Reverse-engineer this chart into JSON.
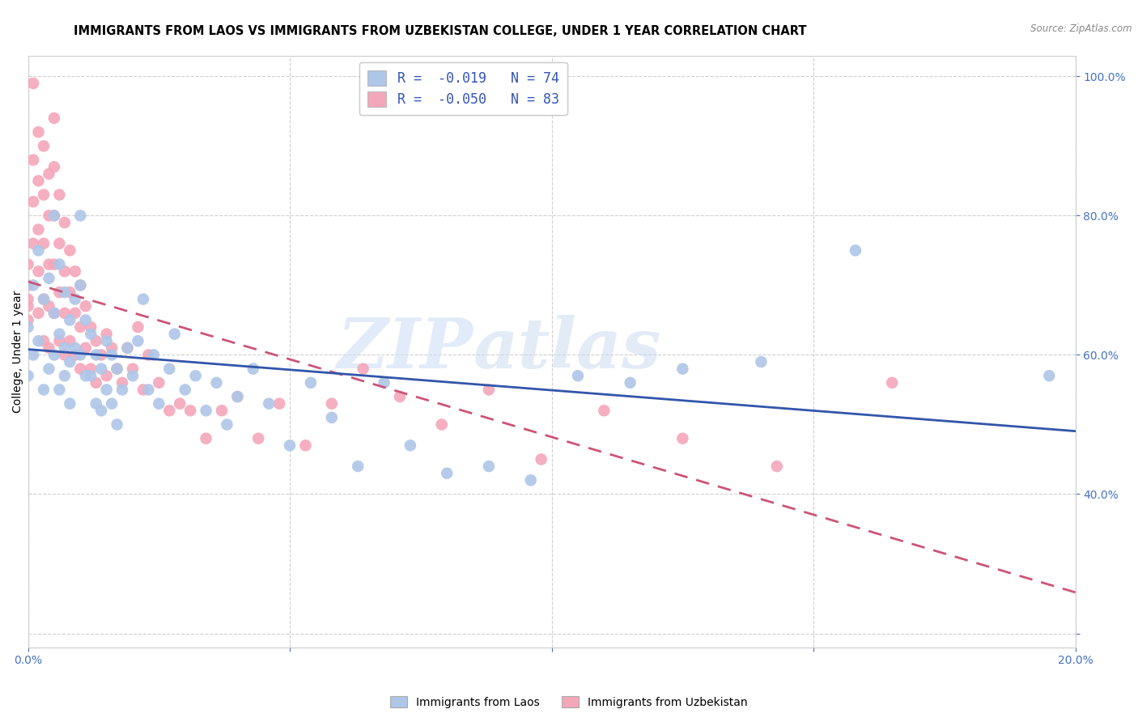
{
  "title": "IMMIGRANTS FROM LAOS VS IMMIGRANTS FROM UZBEKISTAN COLLEGE, UNDER 1 YEAR CORRELATION CHART",
  "source": "Source: ZipAtlas.com",
  "xlabel": "",
  "ylabel": "College, Under 1 year",
  "xlim": [
    0.0,
    0.2
  ],
  "ylim": [
    0.18,
    1.03
  ],
  "xticks": [
    0.0,
    0.05,
    0.1,
    0.15,
    0.2
  ],
  "xticklabels": [
    "0.0%",
    "",
    "",
    "",
    "20.0%"
  ],
  "yticks": [
    0.2,
    0.4,
    0.6,
    0.8,
    1.0
  ],
  "yticklabels": [
    "",
    "40.0%",
    "60.0%",
    "80.0%",
    "100.0%"
  ],
  "grid_color": "#d0d0d0",
  "background_color": "#ffffff",
  "laos_color": "#aec6e8",
  "uzbekistan_color": "#f4a7b9",
  "laos_line_color": "#3355aa",
  "uzbekistan_line_color": "#cc5577",
  "laos_R": -0.019,
  "laos_N": 74,
  "uzbekistan_R": -0.05,
  "uzbekistan_N": 83,
  "laos_points_x": [
    0.0,
    0.0,
    0.001,
    0.001,
    0.002,
    0.002,
    0.003,
    0.003,
    0.004,
    0.004,
    0.005,
    0.005,
    0.005,
    0.006,
    0.006,
    0.006,
    0.007,
    0.007,
    0.007,
    0.008,
    0.008,
    0.008,
    0.009,
    0.009,
    0.01,
    0.01,
    0.01,
    0.011,
    0.011,
    0.012,
    0.012,
    0.013,
    0.013,
    0.014,
    0.014,
    0.015,
    0.015,
    0.016,
    0.016,
    0.017,
    0.017,
    0.018,
    0.019,
    0.02,
    0.021,
    0.022,
    0.023,
    0.024,
    0.025,
    0.027,
    0.028,
    0.03,
    0.032,
    0.034,
    0.036,
    0.038,
    0.04,
    0.043,
    0.046,
    0.05,
    0.054,
    0.058,
    0.063,
    0.068,
    0.073,
    0.08,
    0.088,
    0.096,
    0.105,
    0.115,
    0.125,
    0.14,
    0.158,
    0.195
  ],
  "laos_points_y": [
    0.64,
    0.57,
    0.7,
    0.6,
    0.75,
    0.62,
    0.68,
    0.55,
    0.71,
    0.58,
    0.8,
    0.66,
    0.6,
    0.73,
    0.63,
    0.55,
    0.69,
    0.61,
    0.57,
    0.65,
    0.59,
    0.53,
    0.68,
    0.61,
    0.8,
    0.7,
    0.6,
    0.65,
    0.57,
    0.63,
    0.57,
    0.6,
    0.53,
    0.58,
    0.52,
    0.62,
    0.55,
    0.6,
    0.53,
    0.58,
    0.5,
    0.55,
    0.61,
    0.57,
    0.62,
    0.68,
    0.55,
    0.6,
    0.53,
    0.58,
    0.63,
    0.55,
    0.57,
    0.52,
    0.56,
    0.5,
    0.54,
    0.58,
    0.53,
    0.47,
    0.56,
    0.51,
    0.44,
    0.56,
    0.47,
    0.43,
    0.44,
    0.42,
    0.57,
    0.56,
    0.58,
    0.59,
    0.75,
    0.57
  ],
  "uzbekistan_points_x": [
    0.0,
    0.0,
    0.0,
    0.0,
    0.0,
    0.001,
    0.001,
    0.001,
    0.001,
    0.002,
    0.002,
    0.002,
    0.002,
    0.002,
    0.003,
    0.003,
    0.003,
    0.003,
    0.003,
    0.004,
    0.004,
    0.004,
    0.004,
    0.004,
    0.005,
    0.005,
    0.005,
    0.005,
    0.005,
    0.006,
    0.006,
    0.006,
    0.006,
    0.007,
    0.007,
    0.007,
    0.007,
    0.008,
    0.008,
    0.008,
    0.009,
    0.009,
    0.009,
    0.01,
    0.01,
    0.01,
    0.011,
    0.011,
    0.012,
    0.012,
    0.013,
    0.013,
    0.014,
    0.015,
    0.015,
    0.016,
    0.017,
    0.018,
    0.019,
    0.02,
    0.021,
    0.022,
    0.023,
    0.025,
    0.027,
    0.029,
    0.031,
    0.034,
    0.037,
    0.04,
    0.044,
    0.048,
    0.053,
    0.058,
    0.064,
    0.071,
    0.079,
    0.088,
    0.098,
    0.11,
    0.125,
    0.143,
    0.165
  ],
  "uzbekistan_points_y": [
    0.7,
    0.68,
    0.65,
    0.73,
    0.67,
    0.99,
    0.88,
    0.76,
    0.82,
    0.92,
    0.85,
    0.78,
    0.72,
    0.66,
    0.9,
    0.83,
    0.76,
    0.68,
    0.62,
    0.86,
    0.8,
    0.73,
    0.67,
    0.61,
    0.94,
    0.87,
    0.8,
    0.73,
    0.66,
    0.83,
    0.76,
    0.69,
    0.62,
    0.79,
    0.72,
    0.66,
    0.6,
    0.75,
    0.69,
    0.62,
    0.72,
    0.66,
    0.6,
    0.7,
    0.64,
    0.58,
    0.67,
    0.61,
    0.64,
    0.58,
    0.62,
    0.56,
    0.6,
    0.63,
    0.57,
    0.61,
    0.58,
    0.56,
    0.61,
    0.58,
    0.64,
    0.55,
    0.6,
    0.56,
    0.52,
    0.53,
    0.52,
    0.48,
    0.52,
    0.54,
    0.48,
    0.53,
    0.47,
    0.53,
    0.58,
    0.54,
    0.5,
    0.55,
    0.45,
    0.52,
    0.48,
    0.44,
    0.56
  ],
  "watermark_text": "ZIP",
  "watermark_text2": "atlas",
  "title_fontsize": 10.5,
  "label_fontsize": 10,
  "tick_fontsize": 10,
  "legend_fontsize": 12
}
